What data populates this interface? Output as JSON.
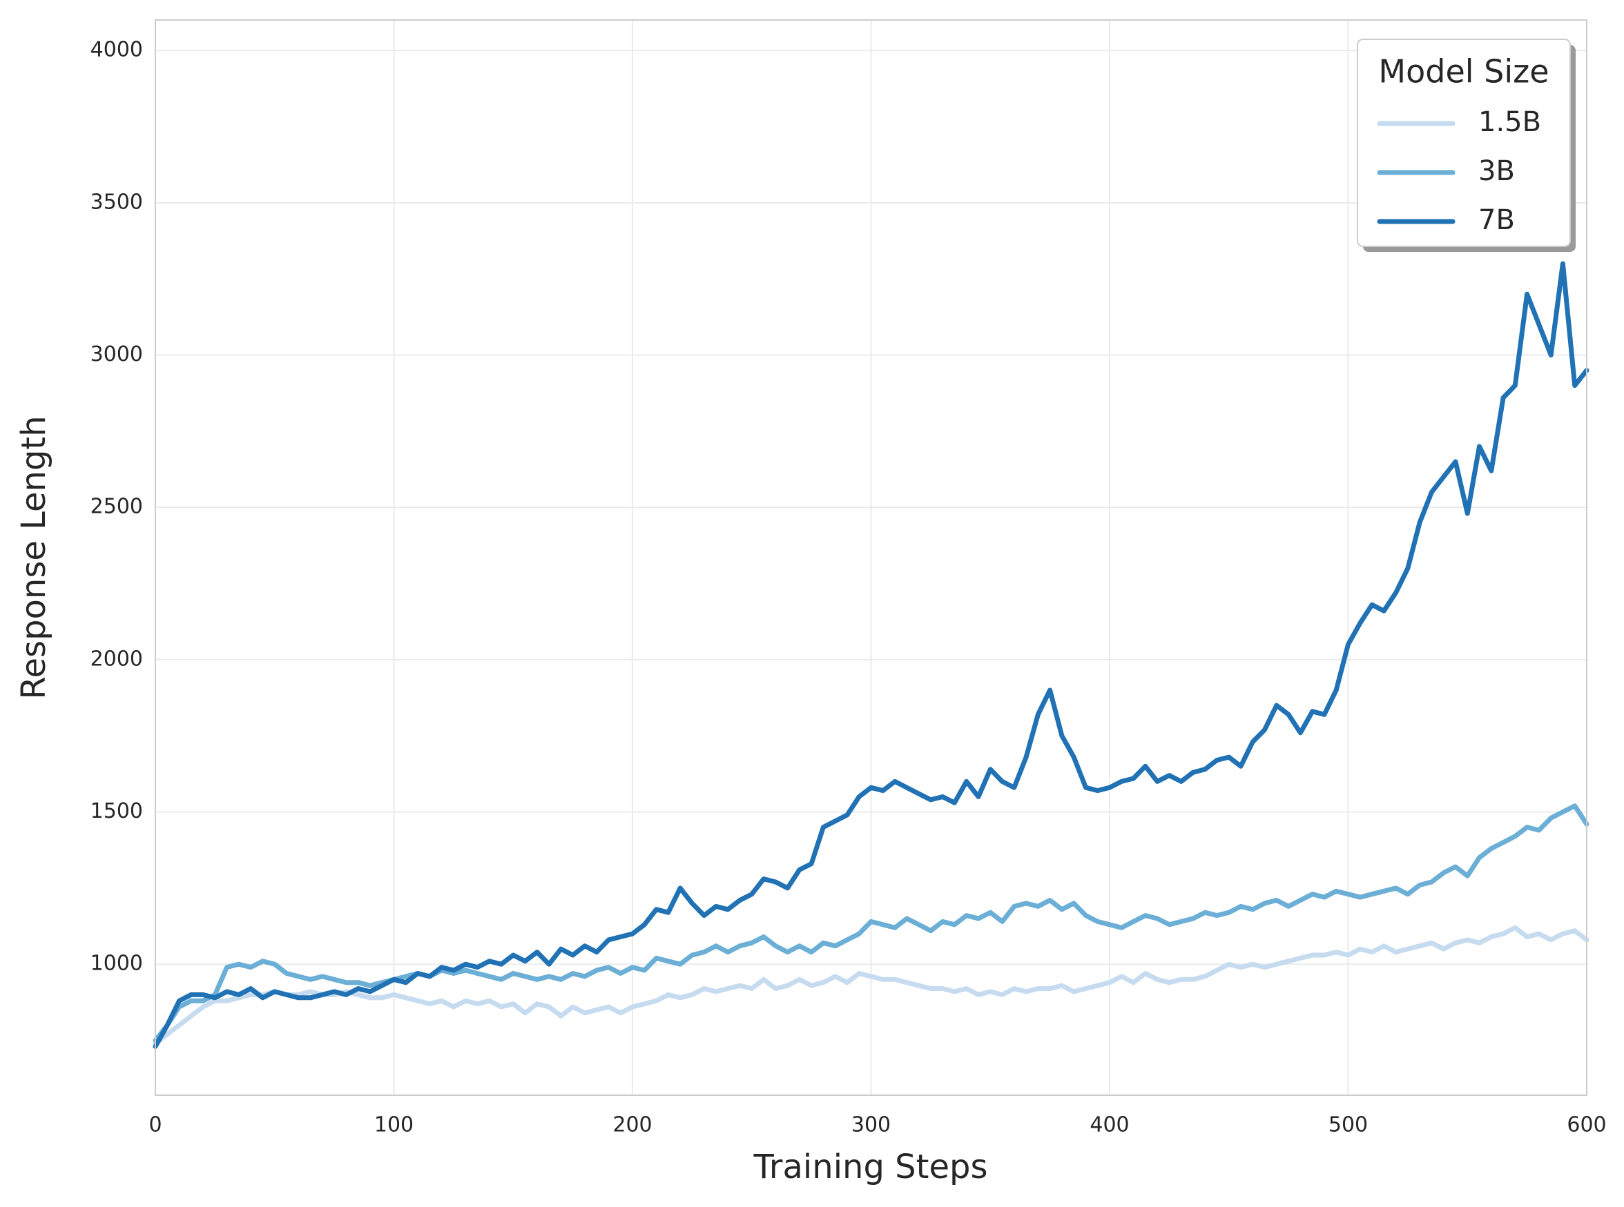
{
  "chart_data": {
    "type": "line",
    "x_label": "Training Steps",
    "y_label": "Response Length",
    "legend_title": "Model Size",
    "legend_position": "upper right",
    "grid": true,
    "xlim": [
      0,
      600
    ],
    "xticks": [
      0,
      100,
      200,
      300,
      400,
      500,
      600
    ],
    "ylim": [
      570,
      4100
    ],
    "yticks": [
      1000,
      1500,
      2000,
      2500,
      3000,
      3500,
      4000
    ],
    "x": [
      0,
      5,
      10,
      15,
      20,
      25,
      30,
      35,
      40,
      45,
      50,
      55,
      60,
      65,
      70,
      75,
      80,
      85,
      90,
      95,
      100,
      105,
      110,
      115,
      120,
      125,
      130,
      135,
      140,
      145,
      150,
      155,
      160,
      165,
      170,
      175,
      180,
      185,
      190,
      195,
      200,
      205,
      210,
      215,
      220,
      225,
      230,
      235,
      240,
      245,
      250,
      255,
      260,
      265,
      270,
      275,
      280,
      285,
      290,
      295,
      300,
      305,
      310,
      315,
      320,
      325,
      330,
      335,
      340,
      345,
      350,
      355,
      360,
      365,
      370,
      375,
      380,
      385,
      390,
      395,
      400,
      405,
      410,
      415,
      420,
      425,
      430,
      435,
      440,
      445,
      450,
      455,
      460,
      465,
      470,
      475,
      480,
      485,
      490,
      495,
      500,
      505,
      510,
      515,
      520,
      525,
      530,
      535,
      540,
      545,
      550,
      555,
      560,
      565,
      570,
      575,
      580,
      585,
      590,
      595,
      600
    ],
    "series": [
      {
        "name": "1.5B",
        "color": "#c6dbef",
        "values": [
          740,
          770,
          800,
          830,
          860,
          880,
          880,
          890,
          900,
          900,
          910,
          900,
          900,
          910,
          900,
          900,
          910,
          900,
          890,
          890,
          900,
          890,
          880,
          870,
          880,
          860,
          880,
          870,
          880,
          860,
          870,
          840,
          870,
          860,
          830,
          860,
          840,
          850,
          860,
          840,
          860,
          870,
          880,
          900,
          890,
          900,
          920,
          910,
          920,
          930,
          920,
          950,
          920,
          930,
          950,
          930,
          940,
          960,
          940,
          970,
          960,
          950,
          950,
          940,
          930,
          920,
          920,
          910,
          920,
          900,
          910,
          900,
          920,
          910,
          920,
          920,
          930,
          910,
          920,
          930,
          940,
          960,
          940,
          970,
          950,
          940,
          950,
          950,
          960,
          980,
          1000,
          990,
          1000,
          990,
          1000,
          1010,
          1020,
          1030,
          1030,
          1040,
          1030,
          1050,
          1040,
          1060,
          1040,
          1050,
          1060,
          1070,
          1050,
          1070,
          1080,
          1070,
          1090,
          1100,
          1120,
          1090,
          1100,
          1080,
          1100,
          1110,
          1080
        ]
      },
      {
        "name": "3B",
        "color": "#6baed6",
        "values": [
          750,
          800,
          860,
          880,
          880,
          900,
          990,
          1000,
          990,
          1010,
          1000,
          970,
          960,
          950,
          960,
          950,
          940,
          940,
          930,
          940,
          950,
          960,
          970,
          960,
          980,
          970,
          980,
          970,
          960,
          950,
          970,
          960,
          950,
          960,
          950,
          970,
          960,
          980,
          990,
          970,
          990,
          980,
          1020,
          1010,
          1000,
          1030,
          1040,
          1060,
          1040,
          1060,
          1070,
          1090,
          1060,
          1040,
          1060,
          1040,
          1070,
          1060,
          1080,
          1100,
          1140,
          1130,
          1120,
          1150,
          1130,
          1110,
          1140,
          1130,
          1160,
          1150,
          1170,
          1140,
          1190,
          1200,
          1190,
          1210,
          1180,
          1200,
          1160,
          1140,
          1130,
          1120,
          1140,
          1160,
          1150,
          1130,
          1140,
          1150,
          1170,
          1160,
          1170,
          1190,
          1180,
          1200,
          1210,
          1190,
          1210,
          1230,
          1220,
          1240,
          1230,
          1220,
          1230,
          1240,
          1250,
          1230,
          1260,
          1270,
          1300,
          1320,
          1290,
          1350,
          1380,
          1400,
          1420,
          1450,
          1440,
          1480,
          1500,
          1520,
          1460
        ]
      },
      {
        "name": "7B",
        "color": "#2171b5",
        "values": [
          730,
          800,
          880,
          900,
          900,
          890,
          910,
          900,
          920,
          890,
          910,
          900,
          890,
          890,
          900,
          910,
          900,
          920,
          910,
          930,
          950,
          940,
          970,
          960,
          990,
          980,
          1000,
          990,
          1010,
          1000,
          1030,
          1010,
          1040,
          1000,
          1050,
          1030,
          1060,
          1040,
          1080,
          1090,
          1100,
          1130,
          1180,
          1170,
          1250,
          1200,
          1160,
          1190,
          1180,
          1210,
          1230,
          1280,
          1270,
          1250,
          1310,
          1330,
          1450,
          1470,
          1490,
          1550,
          1580,
          1570,
          1600,
          1580,
          1560,
          1540,
          1550,
          1530,
          1600,
          1550,
          1640,
          1600,
          1580,
          1680,
          1820,
          1900,
          1750,
          1680,
          1580,
          1570,
          1580,
          1600,
          1610,
          1650,
          1600,
          1620,
          1600,
          1630,
          1640,
          1670,
          1680,
          1650,
          1730,
          1770,
          1850,
          1820,
          1760,
          1830,
          1820,
          1900,
          2050,
          2120,
          2180,
          2160,
          2220,
          2300,
          2450,
          2550,
          2600,
          2650,
          2480,
          2700,
          2620,
          2860,
          2900,
          3200,
          3100,
          3000,
          3300,
          2900,
          2950
        ]
      }
    ]
  }
}
